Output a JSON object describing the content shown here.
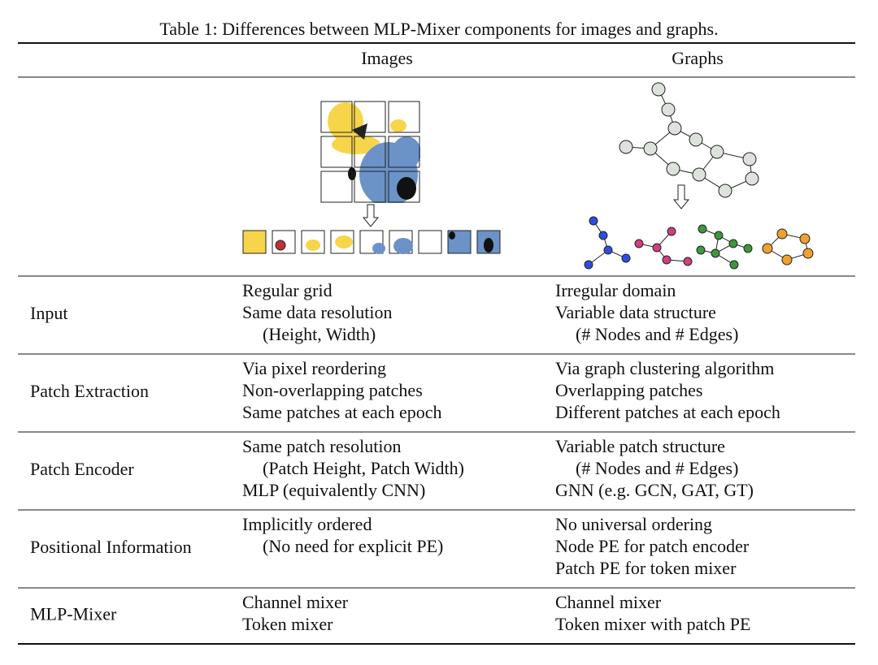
{
  "caption": "Table 1: Differences between MLP-Mixer components for images and graphs.",
  "header": [
    "Images",
    "Graphs"
  ],
  "rows": [
    {
      "label": "Input",
      "images": [
        "Regular grid",
        "Same data resolution",
        "(Height, Width)"
      ],
      "graphs": [
        "Irregular domain",
        "Variable data structure",
        "(# Nodes and # Edges)"
      ]
    },
    {
      "label": "Patch Extraction",
      "images": [
        "Via pixel reordering",
        "Non-overlapping patches",
        "Same patches at each epoch"
      ],
      "graphs": [
        "Via graph clustering algorithm",
        "Overlapping patches",
        "Different patches at each epoch"
      ]
    },
    {
      "label": "Patch Encoder",
      "images": [
        "Same patch resolution",
        "(Patch Height, Patch Width)",
        "MLP (equivalently CNN)"
      ],
      "graphs": [
        "Variable patch structure",
        "(# Nodes and # Edges)",
        "GNN (e.g. GCN, GAT, GT)"
      ]
    },
    {
      "label": "Positional Information",
      "images": [
        "Implicitly ordered",
        "(No need for explicit PE)"
      ],
      "graphs": [
        "No universal ordering",
        "Node PE for patch encoder",
        "Patch PE for token mixer"
      ]
    },
    {
      "label": "MLP-Mixer",
      "images": [
        "Channel mixer",
        "Token mixer"
      ],
      "graphs": [
        "Channel mixer",
        "Token mixer with patch PE"
      ]
    }
  ]
}
